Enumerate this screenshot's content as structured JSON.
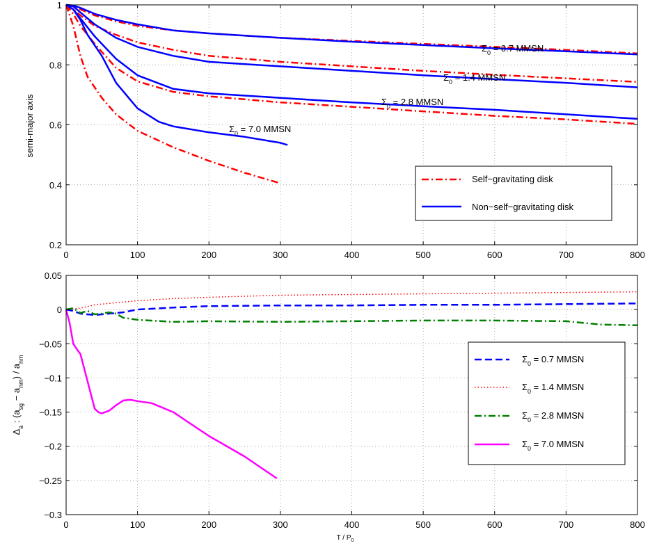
{
  "chart_data": [
    {
      "type": "line",
      "ylabel": "semi-major axis",
      "xlim": [
        0,
        800
      ],
      "ylim": [
        0.2,
        1.0
      ],
      "xticks": [
        "0",
        "100",
        "200",
        "300",
        "400",
        "500",
        "600",
        "700",
        "800"
      ],
      "yticks": [
        "0.2",
        "0.4",
        "0.6",
        "0.8",
        "1"
      ],
      "grid": true,
      "legend_position": "lower-right",
      "legend": [
        {
          "label": "Self−gravitating disk",
          "color": "#ff0000",
          "dash": "dashdot"
        },
        {
          "label": "Non−self−gravitating disk",
          "color": "#0000ff",
          "dash": "solid"
        }
      ],
      "annotations": [
        {
          "sym": "Σ",
          "sub": "0",
          "rest": " = 0.7 MMSN"
        },
        {
          "sym": "Σ",
          "sub": "0",
          "rest": " = 1.4 MMSN"
        },
        {
          "sym": "Σ",
          "sub": "0",
          "rest": " = 2.8 MMSN"
        },
        {
          "sym": "Σ",
          "sub": "0",
          "rest": " = 7.0 MMSN"
        }
      ],
      "series": [
        {
          "kind": "sg",
          "color": "#ff0000",
          "dash": "dashdot",
          "x": [
            0,
            10,
            20,
            40,
            70,
            100,
            150,
            200,
            300,
            400,
            500,
            600,
            700,
            800
          ],
          "y": [
            1.0,
            0.995,
            0.985,
            0.965,
            0.945,
            0.93,
            0.915,
            0.905,
            0.89,
            0.88,
            0.87,
            0.86,
            0.85,
            0.838
          ]
        },
        {
          "kind": "nsg",
          "color": "#0000ff",
          "dash": "solid",
          "x": [
            0,
            10,
            20,
            40,
            70,
            100,
            150,
            200,
            300,
            400,
            500,
            600,
            700,
            800
          ],
          "y": [
            1.0,
            0.998,
            0.99,
            0.97,
            0.95,
            0.935,
            0.915,
            0.905,
            0.89,
            0.877,
            0.866,
            0.855,
            0.845,
            0.835
          ]
        },
        {
          "kind": "sg",
          "color": "#ff0000",
          "dash": "dashdot",
          "x": [
            0,
            10,
            20,
            40,
            70,
            100,
            150,
            200,
            300,
            400,
            500,
            600,
            700,
            800
          ],
          "y": [
            1.0,
            0.985,
            0.965,
            0.93,
            0.9,
            0.875,
            0.85,
            0.83,
            0.81,
            0.795,
            0.78,
            0.767,
            0.755,
            0.743
          ]
        },
        {
          "kind": "nsg",
          "color": "#0000ff",
          "dash": "solid",
          "x": [
            0,
            10,
            20,
            40,
            70,
            100,
            150,
            200,
            300,
            400,
            500,
            600,
            700,
            800
          ],
          "y": [
            1.0,
            0.995,
            0.975,
            0.935,
            0.89,
            0.86,
            0.83,
            0.81,
            0.795,
            0.78,
            0.765,
            0.752,
            0.74,
            0.725
          ]
        },
        {
          "kind": "sg",
          "color": "#ff0000",
          "dash": "dashdot",
          "x": [
            0,
            10,
            20,
            40,
            70,
            100,
            150,
            200,
            300,
            400,
            500,
            600,
            700,
            800
          ],
          "y": [
            1.0,
            0.97,
            0.93,
            0.87,
            0.79,
            0.745,
            0.71,
            0.695,
            0.675,
            0.66,
            0.645,
            0.63,
            0.618,
            0.603
          ]
        },
        {
          "kind": "nsg",
          "color": "#0000ff",
          "dash": "solid",
          "x": [
            0,
            10,
            20,
            40,
            70,
            100,
            150,
            200,
            300,
            400,
            500,
            600,
            700,
            800
          ],
          "y": [
            1.0,
            0.985,
            0.955,
            0.895,
            0.82,
            0.765,
            0.72,
            0.705,
            0.69,
            0.675,
            0.662,
            0.65,
            0.635,
            0.62
          ]
        },
        {
          "kind": "sg",
          "color": "#ff0000",
          "dash": "dashdot",
          "x": [
            0,
            10,
            20,
            30,
            50,
            70,
            100,
            150,
            200,
            250,
            300
          ],
          "y": [
            1.0,
            0.93,
            0.83,
            0.76,
            0.69,
            0.635,
            0.58,
            0.525,
            0.48,
            0.44,
            0.405
          ]
        },
        {
          "kind": "nsg",
          "color": "#0000ff",
          "dash": "solid",
          "x": [
            0,
            10,
            20,
            30,
            50,
            70,
            100,
            130,
            150,
            200,
            250,
            300,
            310
          ],
          "y": [
            1.0,
            0.985,
            0.95,
            0.9,
            0.83,
            0.74,
            0.655,
            0.61,
            0.595,
            0.575,
            0.56,
            0.54,
            0.533
          ]
        }
      ]
    },
    {
      "type": "line",
      "ylabel": "Δa : (asg − anm) / anm",
      "ylabel_parts": {
        "delta": "Δ",
        "delta_sub": "a",
        "mid": " : (a",
        "sub1": "sg",
        "mid2": " − a",
        "sub2": "nm",
        "mid3": ") / a",
        "sub3": "nm"
      },
      "xlabel": "T / P0",
      "xlabel_parts": {
        "main": "T / P",
        "sub": "0"
      },
      "xlim": [
        0,
        800
      ],
      "ylim": [
        -0.3,
        0.05
      ],
      "xticks": [
        "0",
        "100",
        "200",
        "300",
        "400",
        "500",
        "600",
        "700",
        "800"
      ],
      "yticks": [
        "−0.3",
        "−0.25",
        "−0.2",
        "−0.15",
        "−0.1",
        "−0.05",
        "0",
        "0.05"
      ],
      "grid": true,
      "legend_position": "lower-right",
      "legend": [
        {
          "sym": "Σ",
          "sub": "0",
          "rest": " = 0.7 MMSN",
          "color": "#0000ff",
          "dash": "dashed"
        },
        {
          "sym": "Σ",
          "sub": "0",
          "rest": " = 1.4 MMSN",
          "color": "#ff0000",
          "dash": "dotted"
        },
        {
          "sym": "Σ",
          "sub": "0",
          "rest": " = 2.8 MMSN",
          "color": "#008000",
          "dash": "dashdot"
        },
        {
          "sym": "Σ",
          "sub": "0",
          "rest": " = 7.0 MMSN",
          "color": "#ff00ff",
          "dash": "solid"
        }
      ],
      "series": [
        {
          "name": "Σ0 = 0.7 MMSN",
          "color": "#0000ff",
          "dash": "dashed",
          "x": [
            0,
            10,
            20,
            40,
            60,
            80,
            100,
            150,
            200,
            300,
            400,
            500,
            600,
            700,
            800
          ],
          "y": [
            0.0,
            -0.002,
            -0.006,
            -0.008,
            -0.006,
            -0.004,
            0.0,
            0.003,
            0.005,
            0.006,
            0.006,
            0.007,
            0.007,
            0.008,
            0.009
          ]
        },
        {
          "name": "Σ0 = 1.4 MMSN",
          "color": "#ff0000",
          "dash": "dotted",
          "x": [
            0,
            20,
            40,
            60,
            80,
            100,
            150,
            200,
            300,
            400,
            500,
            600,
            700,
            800
          ],
          "y": [
            0.0,
            0.002,
            0.007,
            0.009,
            0.011,
            0.013,
            0.016,
            0.018,
            0.021,
            0.022,
            0.023,
            0.024,
            0.025,
            0.026
          ]
        },
        {
          "name": "Σ0 = 2.8 MMSN",
          "color": "#008000",
          "dash": "dashdot",
          "x": [
            0,
            10,
            20,
            30,
            40,
            50,
            60,
            70,
            80,
            100,
            150,
            200,
            300,
            400,
            500,
            600,
            700,
            750,
            800
          ],
          "y": [
            0.0,
            0.002,
            -0.005,
            -0.002,
            -0.007,
            -0.006,
            -0.004,
            -0.006,
            -0.012,
            -0.015,
            -0.018,
            -0.017,
            -0.018,
            -0.017,
            -0.016,
            -0.016,
            -0.017,
            -0.022,
            -0.023
          ]
        },
        {
          "name": "Σ0 = 7.0 MMSN",
          "color": "#ff00ff",
          "dash": "solid",
          "x": [
            0,
            5,
            10,
            15,
            20,
            25,
            30,
            35,
            40,
            45,
            50,
            55,
            60,
            70,
            80,
            90,
            100,
            120,
            150,
            200,
            250,
            295
          ],
          "y": [
            0.0,
            -0.02,
            -0.05,
            -0.058,
            -0.065,
            -0.085,
            -0.105,
            -0.125,
            -0.145,
            -0.15,
            -0.152,
            -0.15,
            -0.148,
            -0.14,
            -0.133,
            -0.132,
            -0.134,
            -0.137,
            -0.15,
            -0.185,
            -0.215,
            -0.247
          ]
        }
      ]
    }
  ]
}
